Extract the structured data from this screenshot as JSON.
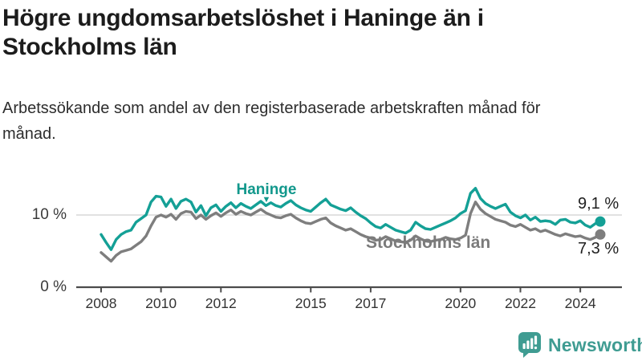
{
  "title": "Högre ungdomsarbetslöshet i Haninge än i Stockholms län",
  "subtitle": "Arbetssökande som andel av den registerbaserade arbetskraften månad för månad.",
  "branding": {
    "logo_text": "Newsworthy",
    "logo_color": "#3f9c92",
    "logo_icon": "bar-chart-speech-bubble"
  },
  "colors": {
    "haninge": "#14a096",
    "stockholm": "#7e7e7e",
    "gridline": "#d7d7d7",
    "axis": "#4c4c4c",
    "tick_text": "#333333"
  },
  "chart_data": {
    "type": "line",
    "title": "Högre ungdomsarbetslöshet i Haninge än i Stockholms län",
    "subtitle": "Arbetssökande som andel av den registerbaserade arbetskraften månad för månad.",
    "x_unit": "year-month",
    "x_start_year": 2008,
    "x_step_months": 2,
    "x_ticks": [
      2008,
      2010,
      2012,
      2015,
      2017,
      2020,
      2022,
      2024
    ],
    "xlim": [
      2007.6,
      2025.0
    ],
    "ylim": [
      0,
      15
    ],
    "grid": "horizontal-10-only",
    "y_ticks": [
      {
        "value": 0,
        "label": "0 %"
      },
      {
        "value": 10,
        "label": "10 %"
      }
    ],
    "legend_position": "inline-labels",
    "series": [
      {
        "name": "Haninge",
        "color": "#14a096",
        "last_value_label": "9,1 %",
        "last_value": 9.1,
        "values": [
          7.3,
          6.2,
          5.2,
          6.6,
          7.3,
          7.7,
          7.9,
          9.0,
          9.5,
          10.0,
          11.8,
          12.6,
          12.5,
          11.2,
          12.2,
          10.9,
          11.9,
          12.2,
          11.8,
          10.4,
          11.3,
          9.9,
          11.0,
          11.4,
          10.5,
          11.2,
          11.7,
          11.0,
          11.6,
          11.2,
          10.9,
          11.4,
          11.9,
          11.3,
          11.7,
          11.3,
          11.1,
          11.6,
          12.0,
          11.4,
          11.0,
          10.7,
          10.5,
          11.1,
          11.7,
          12.2,
          11.4,
          11.1,
          10.8,
          10.6,
          11.0,
          10.4,
          9.9,
          9.5,
          8.9,
          8.4,
          8.2,
          8.7,
          8.3,
          7.9,
          7.7,
          7.5,
          7.9,
          9.0,
          8.5,
          8.1,
          8.0,
          8.3,
          8.6,
          8.9,
          9.2,
          9.6,
          10.2,
          10.6,
          13.0,
          13.7,
          12.3,
          11.6,
          11.2,
          10.9,
          11.2,
          11.5,
          10.4,
          9.9,
          9.6,
          10.0,
          9.3,
          9.7,
          9.1,
          9.2,
          9.1,
          8.7,
          9.3,
          9.4,
          9.0,
          8.9,
          9.2,
          8.6,
          8.3,
          8.8,
          9.1
        ]
      },
      {
        "name": "Stockholms län",
        "color": "#7e7e7e",
        "last_value_label": "7,3 %",
        "last_value": 7.3,
        "values": [
          4.8,
          4.2,
          3.6,
          4.4,
          4.9,
          5.1,
          5.3,
          5.8,
          6.3,
          7.1,
          8.5,
          9.7,
          10.0,
          9.7,
          10.1,
          9.4,
          10.2,
          10.5,
          10.4,
          9.5,
          10.0,
          9.4,
          9.9,
          10.3,
          9.8,
          10.3,
          10.7,
          10.1,
          10.5,
          10.2,
          10.0,
          10.4,
          10.8,
          10.3,
          10.0,
          9.7,
          9.6,
          9.9,
          10.1,
          9.6,
          9.2,
          8.9,
          8.8,
          9.1,
          9.4,
          9.6,
          8.9,
          8.5,
          8.2,
          7.9,
          8.1,
          7.7,
          7.3,
          7.0,
          6.8,
          6.5,
          6.6,
          7.0,
          6.7,
          6.4,
          6.3,
          6.2,
          6.5,
          7.1,
          6.7,
          6.4,
          6.3,
          6.5,
          6.6,
          6.9,
          6.7,
          6.6,
          6.8,
          7.2,
          10.2,
          11.8,
          10.8,
          10.2,
          9.8,
          9.4,
          9.2,
          9.0,
          8.6,
          8.4,
          8.7,
          8.3,
          7.9,
          8.1,
          7.7,
          7.9,
          7.6,
          7.3,
          7.1,
          7.4,
          7.2,
          7.0,
          7.1,
          6.8,
          6.6,
          6.9,
          7.3
        ]
      }
    ]
  }
}
